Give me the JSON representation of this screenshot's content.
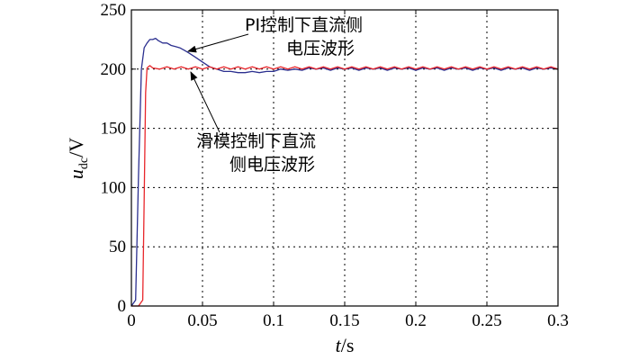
{
  "chart_data": {
    "type": "line",
    "xlabel": "t/s",
    "ylabel": "u_dc/V",
    "ylabel_parts": {
      "var": "u",
      "sub": "dc",
      "unit": "/V"
    },
    "xlabel_parts": {
      "var": "t",
      "unit": "/s"
    },
    "xlim": [
      0,
      0.3
    ],
    "ylim": [
      0,
      250
    ],
    "xticks": [
      0,
      0.05,
      0.1,
      0.15,
      0.2,
      0.25,
      0.3
    ],
    "xtick_labels": [
      "0",
      "0.05",
      "0.1",
      "0.15",
      "0.2",
      "0.25",
      "0.3"
    ],
    "yticks": [
      0,
      50,
      100,
      150,
      200,
      250
    ],
    "ytick_labels": [
      "0",
      "50",
      "100",
      "150",
      "200",
      "250"
    ],
    "grid": true,
    "series": [
      {
        "color": "#2b2f8f",
        "x": [
          0,
          0.003,
          0.005,
          0.007,
          0.009,
          0.011,
          0.013,
          0.015,
          0.017,
          0.019,
          0.022,
          0.025,
          0.028,
          0.031,
          0.034,
          0.037,
          0.04,
          0.045,
          0.05,
          0.055,
          0.06,
          0.065,
          0.07,
          0.075,
          0.08,
          0.085,
          0.09,
          0.095,
          0.1,
          0.105,
          0.11,
          0.115,
          0.12,
          0.125,
          0.13,
          0.135,
          0.14,
          0.145,
          0.15,
          0.155,
          0.16,
          0.165,
          0.17,
          0.175,
          0.18,
          0.185,
          0.19,
          0.195,
          0.2,
          0.205,
          0.21,
          0.215,
          0.22,
          0.225,
          0.23,
          0.235,
          0.24,
          0.245,
          0.25,
          0.255,
          0.26,
          0.265,
          0.27,
          0.275,
          0.28,
          0.285,
          0.29,
          0.295,
          0.3
        ],
        "y": [
          0,
          5,
          110,
          200,
          218,
          222,
          225,
          225,
          226,
          224,
          222,
          222,
          220,
          219,
          218,
          216,
          214,
          210,
          206,
          202,
          200,
          198,
          198,
          197,
          197,
          198,
          197,
          198,
          198,
          200,
          199,
          200,
          199,
          201,
          200,
          201,
          199,
          201,
          200,
          201,
          199,
          201,
          200,
          201,
          199,
          201,
          200,
          201,
          199,
          201,
          200,
          201,
          199,
          201,
          200,
          201,
          199,
          201,
          200,
          201,
          199,
          201,
          200,
          201,
          199,
          201,
          200,
          201,
          200
        ]
      },
      {
        "color": "#e8262b",
        "x": [
          0,
          0.005,
          0.008,
          0.009,
          0.01,
          0.011,
          0.013,
          0.015,
          0.02,
          0.025,
          0.03,
          0.035,
          0.04,
          0.045,
          0.05,
          0.055,
          0.06,
          0.065,
          0.07,
          0.075,
          0.08,
          0.085,
          0.09,
          0.095,
          0.1,
          0.105,
          0.11,
          0.115,
          0.12,
          0.125,
          0.13,
          0.135,
          0.14,
          0.145,
          0.15,
          0.155,
          0.16,
          0.165,
          0.17,
          0.175,
          0.18,
          0.185,
          0.19,
          0.195,
          0.2,
          0.205,
          0.21,
          0.215,
          0.22,
          0.225,
          0.23,
          0.235,
          0.24,
          0.245,
          0.25,
          0.255,
          0.26,
          0.265,
          0.27,
          0.275,
          0.28,
          0.285,
          0.29,
          0.295,
          0.3
        ],
        "y": [
          0,
          0,
          5,
          90,
          180,
          201,
          203,
          201,
          200,
          202,
          200,
          202,
          200,
          202,
          200,
          202,
          200,
          202,
          200,
          202,
          200,
          202,
          200,
          202,
          200,
          202,
          200,
          202,
          200,
          202,
          200,
          202,
          200,
          202,
          200,
          202,
          200,
          202,
          200,
          202,
          200,
          202,
          200,
          202,
          200,
          202,
          200,
          202,
          200,
          202,
          200,
          202,
          200,
          202,
          200,
          202,
          200,
          202,
          200,
          202,
          200,
          202,
          200,
          202,
          200
        ]
      }
    ],
    "annotations": [
      {
        "lines": [
          "PI控制下直流侧",
          "电压波形"
        ],
        "point_to": [
          0.04,
          214
        ]
      },
      {
        "lines": [
          "滑模控制下直流",
          "侧电压波形"
        ],
        "point_to": [
          0.045,
          200
        ]
      }
    ]
  }
}
